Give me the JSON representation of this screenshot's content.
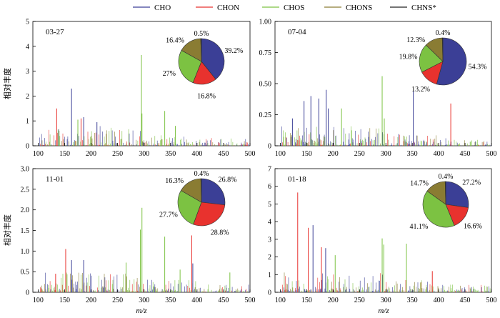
{
  "legend": {
    "placement": "top-center",
    "entries": [
      {
        "name": "CHO",
        "color": "#3b3f96"
      },
      {
        "name": "CHON",
        "color": "#e8322e"
      },
      {
        "name": "CHOS",
        "color": "#7cc242"
      },
      {
        "name": "CHONS",
        "color": "#8a7c33"
      },
      {
        "name": "CHNS*",
        "color": "#222222"
      }
    ]
  },
  "ylabel": "相对丰度",
  "xlabel": "m/z",
  "chart_data": [
    {
      "type": "bar",
      "panel": "03-27",
      "xlim": [
        90,
        500
      ],
      "ylim": [
        0,
        5
      ],
      "xticks": [
        100,
        150,
        200,
        250,
        300,
        350,
        400,
        450,
        500
      ],
      "yticks": [
        "0",
        "1",
        "2",
        "3",
        "4",
        "5"
      ],
      "peaks": [
        {
          "x": 135,
          "y": 1.5,
          "series": "CHON"
        },
        {
          "x": 163,
          "y": 2.3,
          "series": "CHO"
        },
        {
          "x": 175,
          "y": 1.05,
          "series": "CHOS"
        },
        {
          "x": 181,
          "y": 1.1,
          "series": "CHON"
        },
        {
          "x": 186,
          "y": 1.15,
          "series": "CHO"
        },
        {
          "x": 211,
          "y": 0.95,
          "series": "CHO"
        },
        {
          "x": 295,
          "y": 3.65,
          "series": "CHOS"
        },
        {
          "x": 296,
          "y": 1.3,
          "series": "CHOS"
        },
        {
          "x": 339,
          "y": 1.4,
          "series": "CHOS"
        },
        {
          "x": 359,
          "y": 0.8,
          "series": "CHOS"
        }
      ],
      "pie": {
        "values": [
          39.2,
          16.8,
          27,
          16.4,
          0.5
        ],
        "labels": [
          "39.2%",
          "16.8%",
          "27%",
          "16.4%",
          "0.5%"
        ]
      }
    },
    {
      "type": "bar",
      "panel": "07-04",
      "xlim": [
        90,
        500
      ],
      "ylim": [
        0,
        1.0
      ],
      "xticks": [
        100,
        150,
        200,
        250,
        300,
        350,
        400,
        450,
        500
      ],
      "yticks": [
        "0",
        "0.25",
        "0.50",
        "0.75",
        "1.00"
      ],
      "peaks": [
        {
          "x": 123,
          "y": 0.22,
          "series": "CHO"
        },
        {
          "x": 145,
          "y": 0.36,
          "series": "CHO"
        },
        {
          "x": 158,
          "y": 0.4,
          "series": "CHO"
        },
        {
          "x": 173,
          "y": 0.38,
          "series": "CHO"
        },
        {
          "x": 187,
          "y": 0.45,
          "series": "CHO"
        },
        {
          "x": 191,
          "y": 0.3,
          "series": "CHO"
        },
        {
          "x": 216,
          "y": 0.3,
          "series": "CHOS"
        },
        {
          "x": 293,
          "y": 0.56,
          "series": "CHOS"
        },
        {
          "x": 297,
          "y": 0.22,
          "series": "CHOS"
        },
        {
          "x": 352,
          "y": 0.44,
          "series": "CHO"
        },
        {
          "x": 423,
          "y": 0.34,
          "series": "CHON"
        }
      ],
      "pie": {
        "values": [
          54.3,
          13.2,
          19.8,
          12.3,
          0.4
        ],
        "labels": [
          "54.3%",
          "13.2%",
          "19.8%",
          "12.3%",
          "0.4%"
        ]
      }
    },
    {
      "type": "bar",
      "panel": "11-01",
      "xlim": [
        90,
        500
      ],
      "ylim": [
        0,
        3.0
      ],
      "xticks": [
        100,
        150,
        200,
        250,
        300,
        350,
        400,
        450,
        500
      ],
      "yticks": [
        "0",
        "0.5",
        "1.0",
        "1.5",
        "2.0",
        "2.5",
        "3.0"
      ],
      "peaks": [
        {
          "x": 133,
          "y": 0.45,
          "series": "CHON"
        },
        {
          "x": 152,
          "y": 1.05,
          "series": "CHON"
        },
        {
          "x": 163,
          "y": 0.78,
          "series": "CHO"
        },
        {
          "x": 186,
          "y": 0.78,
          "series": "CHO"
        },
        {
          "x": 266,
          "y": 0.72,
          "series": "CHOS"
        },
        {
          "x": 293,
          "y": 1.52,
          "series": "CHOS"
        },
        {
          "x": 296,
          "y": 2.05,
          "series": "CHOS"
        },
        {
          "x": 339,
          "y": 1.35,
          "series": "CHOS"
        },
        {
          "x": 368,
          "y": 0.55,
          "series": "CHOS"
        },
        {
          "x": 390,
          "y": 1.38,
          "series": "CHON"
        },
        {
          "x": 392,
          "y": 0.7,
          "series": "CHO"
        },
        {
          "x": 462,
          "y": 0.48,
          "series": "CHOS"
        }
      ],
      "pie": {
        "values": [
          26.8,
          28.8,
          27.7,
          16.3,
          0.4
        ],
        "labels": [
          "26.8%",
          "28.8%",
          "27.7%",
          "16.3%",
          "0.4%"
        ]
      }
    },
    {
      "type": "bar",
      "panel": "01-18",
      "xlim": [
        90,
        500
      ],
      "ylim": [
        0,
        7
      ],
      "xticks": [
        100,
        150,
        200,
        250,
        300,
        350,
        400,
        450,
        500
      ],
      "yticks": [
        "0",
        "1",
        "2",
        "3",
        "4",
        "5",
        "6",
        "7"
      ],
      "peaks": [
        {
          "x": 133,
          "y": 5.65,
          "series": "CHON"
        },
        {
          "x": 153,
          "y": 3.65,
          "series": "CHON"
        },
        {
          "x": 162,
          "y": 3.8,
          "series": "CHO"
        },
        {
          "x": 178,
          "y": 2.55,
          "series": "CHON"
        },
        {
          "x": 186,
          "y": 2.5,
          "series": "CHO"
        },
        {
          "x": 204,
          "y": 2.1,
          "series": "CHOS"
        },
        {
          "x": 293,
          "y": 3.05,
          "series": "CHOS"
        },
        {
          "x": 296,
          "y": 2.7,
          "series": "CHOS"
        },
        {
          "x": 339,
          "y": 2.75,
          "series": "CHOS"
        },
        {
          "x": 388,
          "y": 1.2,
          "series": "CHON"
        }
      ],
      "pie": {
        "values": [
          27.2,
          16.6,
          41.1,
          14.7,
          0.4
        ],
        "labels": [
          "27.2%",
          "16.6%",
          "41.1%",
          "14.7%",
          "0.4%"
        ]
      }
    }
  ]
}
